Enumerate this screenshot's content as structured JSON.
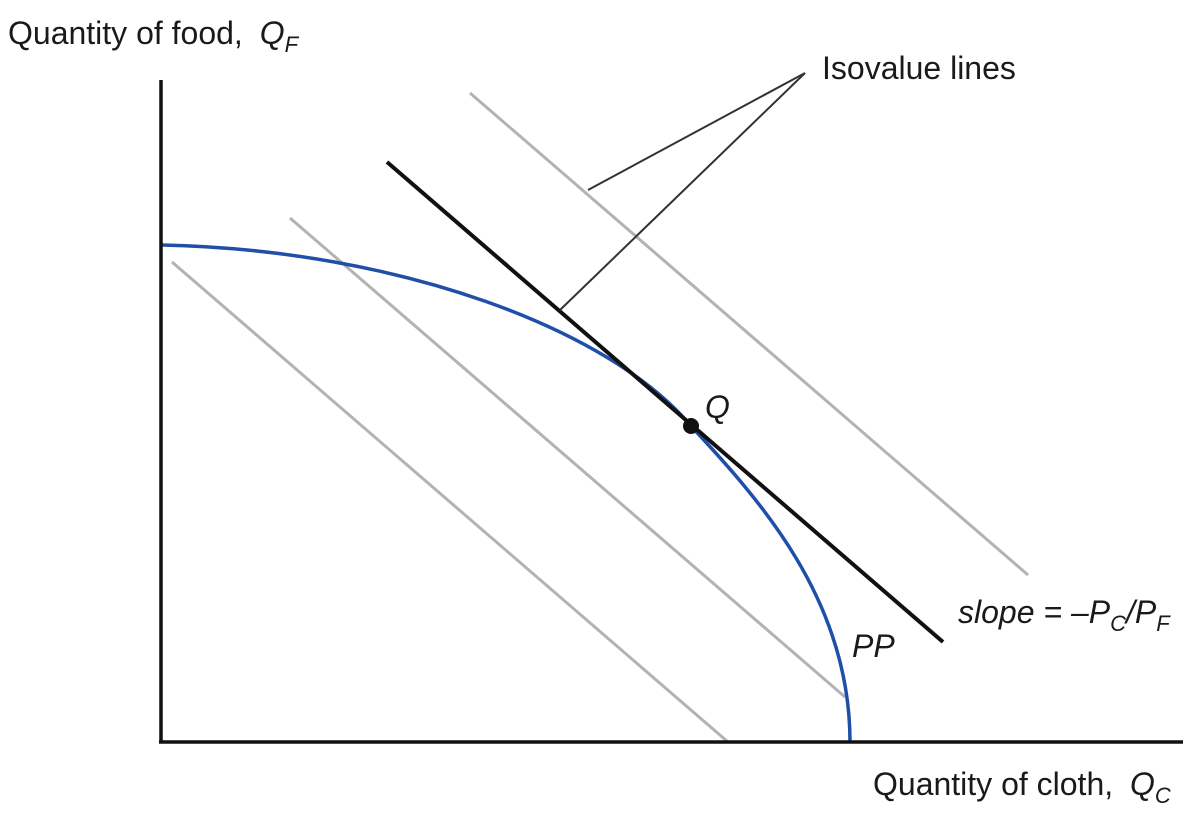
{
  "axes": {
    "y_title": "Quantity of food,",
    "y_symbol": "Q",
    "y_symbol_sub": "F",
    "x_title": "Quantity of cloth,",
    "x_symbol": "Q",
    "x_symbol_sub": "C"
  },
  "labels": {
    "isovalue": "Isovalue lines",
    "point": "Q",
    "curve": "PP",
    "slope_prefix": "slope = –P",
    "slope_sub1": "C",
    "slope_mid": "/P",
    "slope_sub2": "F"
  },
  "colors": {
    "axis": "#111111",
    "curve": "#1f4fa8",
    "tangent": "#111111",
    "isovalue": "#b3b3b3",
    "leader": "#333333"
  }
}
